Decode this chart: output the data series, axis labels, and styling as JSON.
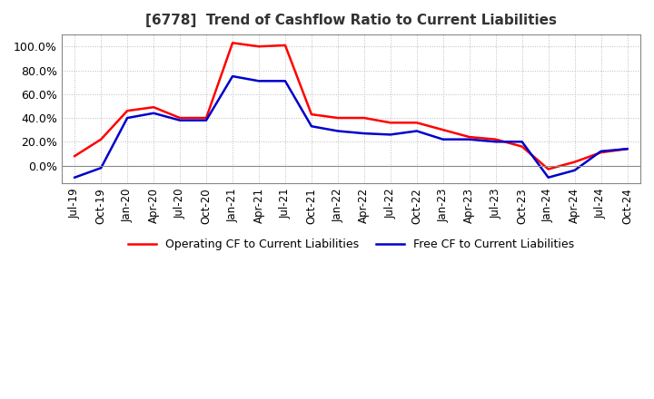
{
  "title": "[6778]  Trend of Cashflow Ratio to Current Liabilities",
  "x_labels": [
    "Jul-19",
    "Oct-19",
    "Jan-20",
    "Apr-20",
    "Jul-20",
    "Oct-20",
    "Jan-21",
    "Apr-21",
    "Jul-21",
    "Oct-21",
    "Jan-22",
    "Apr-22",
    "Jul-22",
    "Oct-22",
    "Jan-23",
    "Apr-23",
    "Jul-23",
    "Oct-23",
    "Jan-24",
    "Apr-24",
    "Jul-24",
    "Oct-24"
  ],
  "operating_cf": [
    0.08,
    0.22,
    0.46,
    0.49,
    0.4,
    0.4,
    1.03,
    1.0,
    1.01,
    0.43,
    0.4,
    0.4,
    0.36,
    0.36,
    0.3,
    0.24,
    0.22,
    0.16,
    -0.03,
    0.03,
    0.11,
    0.14
  ],
  "free_cf": [
    -0.1,
    -0.02,
    0.4,
    0.44,
    0.38,
    0.38,
    0.75,
    0.71,
    0.71,
    0.33,
    0.29,
    0.27,
    0.26,
    0.29,
    0.22,
    0.22,
    0.2,
    0.2,
    -0.1,
    -0.04,
    0.12,
    0.14
  ],
  "operating_color": "#FF0000",
  "free_color": "#0000CC",
  "ylim": [
    -0.15,
    1.1
  ],
  "yticks": [
    0.0,
    0.2,
    0.4,
    0.6,
    0.8,
    1.0
  ],
  "ytick_labels": [
    "0.0%",
    "20.0%",
    "40.0%",
    "60.0%",
    "80.0%",
    "100.0%"
  ],
  "legend_operating": "Operating CF to Current Liabilities",
  "legend_free": "Free CF to Current Liabilities",
  "bg_color": "#FFFFFF",
  "plot_bg_color": "#FFFFFF",
  "grid_color": "#AAAAAA",
  "title_fontsize": 11,
  "tick_fontsize": 8.5,
  "ytick_fontsize": 9
}
